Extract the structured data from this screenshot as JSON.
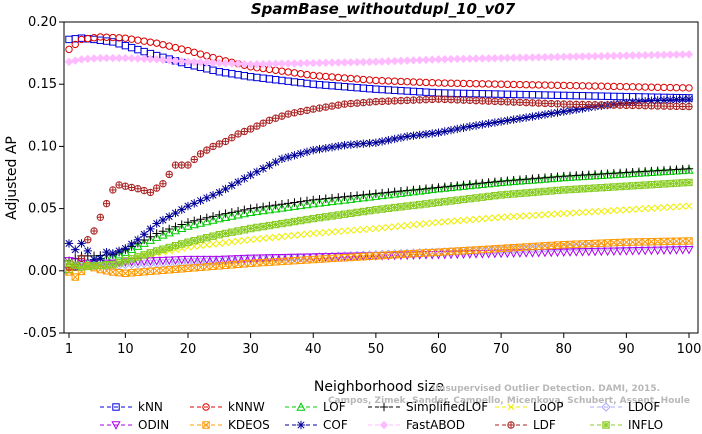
{
  "chart_data": {
    "type": "line",
    "title": "SpamBase_withoutdupl_10_v07",
    "xlabel": "Neighborhood size",
    "ylabel": "Adjusted AP",
    "xlim": [
      1,
      100
    ],
    "ylim": [
      -0.05,
      0.2
    ],
    "xticks": [
      1,
      10,
      20,
      30,
      40,
      50,
      60,
      70,
      80,
      90,
      100
    ],
    "yticks": [
      -0.05,
      0.0,
      0.05,
      0.1,
      0.15,
      0.2
    ],
    "ytick_labels": [
      "-0.05",
      "0.00",
      "0.05",
      "0.10",
      "0.15",
      "0.20"
    ],
    "grid": false,
    "legend_position": "bottom",
    "series": [
      {
        "name": "kNN",
        "color": "#0000dd",
        "marker": "square",
        "points": [
          [
            1,
            0.186
          ],
          [
            3,
            0.187
          ],
          [
            5,
            0.186
          ],
          [
            8,
            0.184
          ],
          [
            10,
            0.181
          ],
          [
            15,
            0.173
          ],
          [
            20,
            0.166
          ],
          [
            25,
            0.16
          ],
          [
            30,
            0.156
          ],
          [
            40,
            0.15
          ],
          [
            50,
            0.146
          ],
          [
            60,
            0.143
          ],
          [
            70,
            0.142
          ],
          [
            80,
            0.141
          ],
          [
            90,
            0.14
          ],
          [
            100,
            0.139
          ]
        ]
      },
      {
        "name": "kNNW",
        "color": "#dd0000",
        "marker": "circle",
        "points": [
          [
            1,
            0.178
          ],
          [
            3,
            0.186
          ],
          [
            6,
            0.188
          ],
          [
            10,
            0.187
          ],
          [
            15,
            0.183
          ],
          [
            20,
            0.177
          ],
          [
            25,
            0.17
          ],
          [
            30,
            0.164
          ],
          [
            40,
            0.157
          ],
          [
            50,
            0.153
          ],
          [
            60,
            0.151
          ],
          [
            70,
            0.15
          ],
          [
            80,
            0.149
          ],
          [
            90,
            0.148
          ],
          [
            100,
            0.147
          ]
        ]
      },
      {
        "name": "LOF",
        "color": "#00cc00",
        "marker": "triangle",
        "points": [
          [
            1,
            0.001
          ],
          [
            3,
            0.005
          ],
          [
            5,
            0.008
          ],
          [
            8,
            0.011
          ],
          [
            10,
            0.015
          ],
          [
            15,
            0.027
          ],
          [
            20,
            0.036
          ],
          [
            25,
            0.042
          ],
          [
            30,
            0.047
          ],
          [
            40,
            0.054
          ],
          [
            50,
            0.06
          ],
          [
            60,
            0.066
          ],
          [
            70,
            0.071
          ],
          [
            80,
            0.075
          ],
          [
            90,
            0.078
          ],
          [
            100,
            0.081
          ]
        ]
      },
      {
        "name": "SimplifiedLOF",
        "color": "#000000",
        "marker": "plus",
        "points": [
          [
            1,
            0.008
          ],
          [
            3,
            0.012
          ],
          [
            5,
            0.012
          ],
          [
            8,
            0.013
          ],
          [
            10,
            0.017
          ],
          [
            15,
            0.03
          ],
          [
            20,
            0.039
          ],
          [
            25,
            0.045
          ],
          [
            30,
            0.05
          ],
          [
            40,
            0.057
          ],
          [
            50,
            0.062
          ],
          [
            60,
            0.067
          ],
          [
            70,
            0.072
          ],
          [
            80,
            0.076
          ],
          [
            90,
            0.079
          ],
          [
            100,
            0.082
          ]
        ]
      },
      {
        "name": "LoOP",
        "color": "#eeee00",
        "marker": "x",
        "points": [
          [
            1,
            0.003
          ],
          [
            3,
            0.004
          ],
          [
            5,
            0.004
          ],
          [
            8,
            0.005
          ],
          [
            10,
            0.008
          ],
          [
            15,
            0.014
          ],
          [
            20,
            0.019
          ],
          [
            25,
            0.022
          ],
          [
            30,
            0.025
          ],
          [
            40,
            0.03
          ],
          [
            50,
            0.034
          ],
          [
            60,
            0.039
          ],
          [
            70,
            0.043
          ],
          [
            80,
            0.046
          ],
          [
            90,
            0.049
          ],
          [
            100,
            0.052
          ]
        ]
      },
      {
        "name": "LDOF",
        "color": "#aaaaff",
        "marker": "diamond",
        "points": [
          [
            1,
            0.003
          ],
          [
            3,
            0.004
          ],
          [
            5,
            0.004
          ],
          [
            8,
            0.004
          ],
          [
            10,
            0.005
          ],
          [
            15,
            0.006
          ],
          [
            20,
            0.007
          ],
          [
            25,
            0.008
          ],
          [
            30,
            0.009
          ],
          [
            40,
            0.011
          ],
          [
            50,
            0.013
          ],
          [
            60,
            0.015
          ],
          [
            70,
            0.017
          ],
          [
            80,
            0.019
          ],
          [
            90,
            0.02
          ],
          [
            100,
            0.021
          ]
        ]
      },
      {
        "name": "ODIN",
        "color": "#aa00ee",
        "marker": "triangle-down",
        "points": [
          [
            1,
            0.008
          ],
          [
            3,
            0.006
          ],
          [
            5,
            0.006
          ],
          [
            8,
            0.006
          ],
          [
            10,
            0.007
          ],
          [
            15,
            0.008
          ],
          [
            20,
            0.009
          ],
          [
            25,
            0.009
          ],
          [
            30,
            0.01
          ],
          [
            40,
            0.011
          ],
          [
            50,
            0.012
          ],
          [
            60,
            0.013
          ],
          [
            70,
            0.014
          ],
          [
            80,
            0.015
          ],
          [
            90,
            0.016
          ],
          [
            100,
            0.017
          ]
        ]
      },
      {
        "name": "KDEOS",
        "color": "#ff9900",
        "marker": "square-x",
        "points": [
          [
            1,
            -0.001
          ],
          [
            2,
            -0.005
          ],
          [
            4,
            0.004
          ],
          [
            6,
            0.001
          ],
          [
            8,
            -0.001
          ],
          [
            10,
            -0.002
          ],
          [
            15,
            0.0
          ],
          [
            20,
            0.002
          ],
          [
            25,
            0.004
          ],
          [
            30,
            0.006
          ],
          [
            40,
            0.009
          ],
          [
            50,
            0.012
          ],
          [
            60,
            0.015
          ],
          [
            70,
            0.018
          ],
          [
            80,
            0.021
          ],
          [
            90,
            0.023
          ],
          [
            100,
            0.024
          ]
        ]
      },
      {
        "name": "COF",
        "color": "#000099",
        "marker": "star",
        "points": [
          [
            1,
            0.022
          ],
          [
            2,
            0.017
          ],
          [
            3,
            0.022
          ],
          [
            4,
            0.016
          ],
          [
            5,
            0.009
          ],
          [
            6,
            0.01
          ],
          [
            7,
            0.015
          ],
          [
            8,
            0.014
          ],
          [
            10,
            0.018
          ],
          [
            12,
            0.025
          ],
          [
            15,
            0.038
          ],
          [
            20,
            0.052
          ],
          [
            25,
            0.063
          ],
          [
            30,
            0.077
          ],
          [
            35,
            0.09
          ],
          [
            40,
            0.097
          ],
          [
            45,
            0.101
          ],
          [
            50,
            0.103
          ],
          [
            55,
            0.108
          ],
          [
            60,
            0.111
          ],
          [
            65,
            0.116
          ],
          [
            70,
            0.12
          ],
          [
            75,
            0.124
          ],
          [
            80,
            0.128
          ],
          [
            85,
            0.132
          ],
          [
            90,
            0.135
          ],
          [
            95,
            0.137
          ],
          [
            100,
            0.138
          ]
        ]
      },
      {
        "name": "FastABOD",
        "color": "#ffbbff",
        "marker": "diamond-filled",
        "points": [
          [
            1,
            0.168
          ],
          [
            3,
            0.17
          ],
          [
            6,
            0.171
          ],
          [
            10,
            0.171
          ],
          [
            15,
            0.17
          ],
          [
            20,
            0.168
          ],
          [
            25,
            0.167
          ],
          [
            30,
            0.166
          ],
          [
            40,
            0.167
          ],
          [
            50,
            0.168
          ],
          [
            60,
            0.17
          ],
          [
            70,
            0.171
          ],
          [
            80,
            0.172
          ],
          [
            90,
            0.173
          ],
          [
            100,
            0.174
          ]
        ]
      },
      {
        "name": "LDF",
        "color": "#aa2222",
        "marker": "circle-plus",
        "points": [
          [
            1,
            0.003
          ],
          [
            2,
            0.003
          ],
          [
            3,
            0.01
          ],
          [
            4,
            0.025
          ],
          [
            5,
            0.032
          ],
          [
            6,
            0.043
          ],
          [
            7,
            0.054
          ],
          [
            8,
            0.065
          ],
          [
            9,
            0.069
          ],
          [
            10,
            0.068
          ],
          [
            12,
            0.066
          ],
          [
            14,
            0.063
          ],
          [
            16,
            0.07
          ],
          [
            18,
            0.085
          ],
          [
            20,
            0.085
          ],
          [
            22,
            0.094
          ],
          [
            24,
            0.1
          ],
          [
            26,
            0.104
          ],
          [
            28,
            0.11
          ],
          [
            30,
            0.114
          ],
          [
            33,
            0.121
          ],
          [
            36,
            0.126
          ],
          [
            40,
            0.13
          ],
          [
            45,
            0.134
          ],
          [
            50,
            0.136
          ],
          [
            55,
            0.137
          ],
          [
            60,
            0.138
          ],
          [
            70,
            0.136
          ],
          [
            80,
            0.134
          ],
          [
            90,
            0.133
          ],
          [
            100,
            0.132
          ]
        ]
      },
      {
        "name": "INFLO",
        "color": "#88cc22",
        "marker": "square-star",
        "points": [
          [
            1,
            0.006
          ],
          [
            3,
            0.003
          ],
          [
            5,
            0.004
          ],
          [
            8,
            0.005
          ],
          [
            10,
            0.008
          ],
          [
            15,
            0.016
          ],
          [
            20,
            0.023
          ],
          [
            25,
            0.029
          ],
          [
            30,
            0.034
          ],
          [
            40,
            0.042
          ],
          [
            50,
            0.049
          ],
          [
            60,
            0.055
          ],
          [
            70,
            0.061
          ],
          [
            80,
            0.065
          ],
          [
            90,
            0.068
          ],
          [
            100,
            0.071
          ]
        ]
      }
    ]
  },
  "watermark": [
    "Unsupervised Outlier Detection. DAMI, 2015.",
    "Campos, Zimek, Sander, Campello, Micenkova, Schubert, Assent, Houle"
  ]
}
